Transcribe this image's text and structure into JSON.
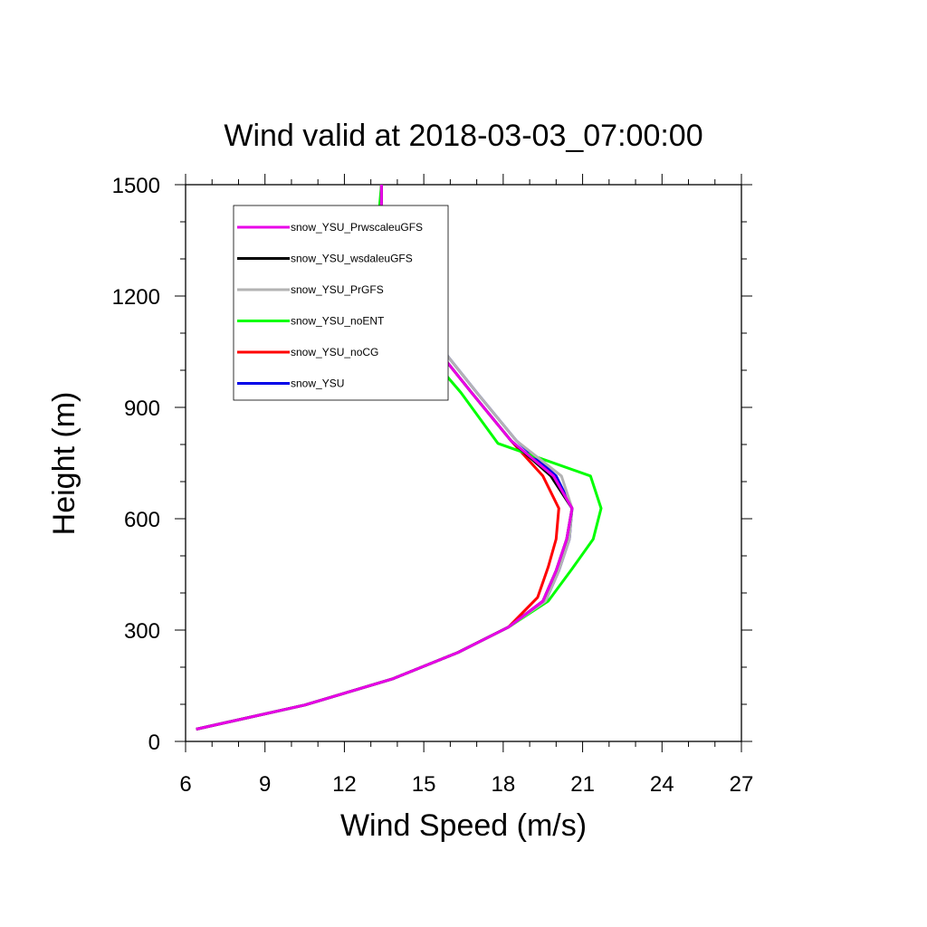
{
  "chart_data": {
    "type": "line",
    "title": "Wind valid at 2018-03-03_07:00:00",
    "xlabel": "Wind Speed (m/s)",
    "ylabel": "Height (m)",
    "xlim": [
      6,
      27
    ],
    "ylim": [
      0,
      1500
    ],
    "x_ticks": [
      "6",
      "9",
      "12",
      "15",
      "18",
      "21",
      "24",
      "27"
    ],
    "y_ticks": [
      "0",
      "300",
      "600",
      "900",
      "1200",
      "1500"
    ],
    "legend_position": "top-left",
    "grid": false,
    "series": [
      {
        "name": "snow_YSU_PrwscaleuGFS",
        "color": "#e800e8",
        "points": [
          [
            6.4,
            33
          ],
          [
            10.5,
            98
          ],
          [
            13.8,
            168
          ],
          [
            16.3,
            240
          ],
          [
            18.2,
            308
          ],
          [
            19.5,
            378
          ],
          [
            20.0,
            460
          ],
          [
            20.4,
            545
          ],
          [
            20.6,
            628
          ],
          [
            19.9,
            715
          ],
          [
            18.3,
            810
          ],
          [
            16.8,
            940
          ],
          [
            15.4,
            1065
          ],
          [
            14.2,
            1190
          ],
          [
            13.6,
            1300
          ],
          [
            13.4,
            1420
          ],
          [
            13.4,
            1500
          ]
        ]
      },
      {
        "name": "snow_YSU_wsdaleuGFS",
        "color": "#000000",
        "points": [
          [
            6.4,
            33
          ],
          [
            10.5,
            98
          ],
          [
            13.8,
            168
          ],
          [
            16.3,
            240
          ],
          [
            18.2,
            308
          ],
          [
            19.5,
            378
          ],
          [
            20.0,
            460
          ],
          [
            20.4,
            545
          ],
          [
            20.6,
            628
          ],
          [
            19.8,
            715
          ],
          [
            18.3,
            810
          ],
          [
            16.8,
            940
          ],
          [
            15.4,
            1065
          ],
          [
            14.2,
            1190
          ],
          [
            13.6,
            1300
          ],
          [
            13.4,
            1420
          ],
          [
            13.4,
            1500
          ]
        ]
      },
      {
        "name": "snow_YSU_PrGFS",
        "color": "#b3b3b3",
        "points": [
          [
            6.4,
            33
          ],
          [
            10.5,
            98
          ],
          [
            13.8,
            168
          ],
          [
            16.3,
            240
          ],
          [
            18.2,
            308
          ],
          [
            19.6,
            378
          ],
          [
            20.1,
            460
          ],
          [
            20.5,
            545
          ],
          [
            20.6,
            628
          ],
          [
            20.2,
            715
          ],
          [
            18.5,
            810
          ],
          [
            17.0,
            940
          ],
          [
            15.6,
            1065
          ],
          [
            14.4,
            1190
          ],
          [
            13.7,
            1300
          ],
          [
            13.4,
            1420
          ],
          [
            13.4,
            1500
          ]
        ]
      },
      {
        "name": "snow_YSU_noENT",
        "color": "#00ff00",
        "points": [
          [
            6.4,
            33
          ],
          [
            10.5,
            98
          ],
          [
            13.8,
            168
          ],
          [
            16.3,
            240
          ],
          [
            18.2,
            308
          ],
          [
            19.7,
            378
          ],
          [
            20.6,
            465
          ],
          [
            21.4,
            545
          ],
          [
            21.7,
            628
          ],
          [
            21.3,
            715
          ],
          [
            17.8,
            803
          ],
          [
            16.4,
            940
          ],
          [
            14.9,
            1065
          ],
          [
            13.6,
            1190
          ],
          [
            13.0,
            1290
          ],
          [
            13.3,
            1420
          ],
          [
            13.4,
            1500
          ]
        ]
      },
      {
        "name": "snow_YSU_noCG",
        "color": "#ff0000",
        "points": [
          [
            6.4,
            33
          ],
          [
            10.5,
            98
          ],
          [
            13.8,
            168
          ],
          [
            16.3,
            240
          ],
          [
            18.2,
            308
          ],
          [
            19.3,
            388
          ],
          [
            19.7,
            470
          ],
          [
            20.0,
            545
          ],
          [
            20.1,
            628
          ],
          [
            19.5,
            715
          ],
          [
            18.3,
            810
          ],
          [
            16.8,
            940
          ],
          [
            15.4,
            1065
          ],
          [
            14.2,
            1190
          ],
          [
            13.6,
            1300
          ],
          [
            13.4,
            1420
          ],
          [
            13.4,
            1500
          ]
        ]
      },
      {
        "name": "snow_YSU",
        "color": "#0000e8",
        "points": [
          [
            6.4,
            33
          ],
          [
            10.5,
            98
          ],
          [
            13.8,
            168
          ],
          [
            16.3,
            240
          ],
          [
            18.2,
            308
          ],
          [
            19.6,
            378
          ],
          [
            20.1,
            460
          ],
          [
            20.5,
            545
          ],
          [
            20.6,
            628
          ],
          [
            20.0,
            715
          ],
          [
            18.5,
            810
          ],
          [
            17.0,
            940
          ],
          [
            15.6,
            1065
          ],
          [
            14.4,
            1190
          ],
          [
            13.7,
            1300
          ],
          [
            13.4,
            1420
          ],
          [
            13.4,
            1500
          ]
        ]
      }
    ]
  }
}
